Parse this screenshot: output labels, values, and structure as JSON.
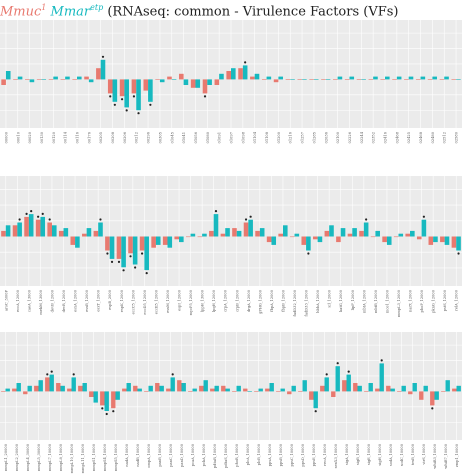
{
  "title": {
    "group1": "Mmuc",
    "group1_sup": "1",
    "group2": "Mmar",
    "group2_sup": "etp",
    "rest": " (RNAseq: common - Virulence Factors (VFs)"
  },
  "colors": {
    "group1": "#e8796f",
    "group2": "#17b9bf",
    "panel_bg": "#ebebeb",
    "grid": "#ffffff",
    "tick_text": "#555555",
    "star": "#222222"
  },
  "chart_data": [
    {
      "type": "bar",
      "panel": 1,
      "categories": [
        "00000",
        "00010",
        "00020",
        "00130",
        "00120",
        "00114",
        "00116",
        "00176",
        "00205",
        "00208",
        "00206",
        "00212",
        "00296",
        "00305",
        "01045",
        "01041",
        "01056",
        "01080",
        "01091",
        "01097",
        "01098",
        "01104",
        "01108",
        "01200",
        "01216",
        "01257",
        "01285",
        "02036",
        "02100",
        "02226",
        "02244",
        "02352",
        "02416",
        "02468",
        "02425",
        "02468",
        "02480",
        "02512",
        "02580"
      ],
      "series": [
        {
          "name": "Mmuc",
          "values": [
            -0.2,
            0.0,
            0.0,
            0.0,
            0.0,
            0.0,
            0.0,
            0.1,
            0.4,
            -0.5,
            -0.6,
            -0.5,
            -0.4,
            0.0,
            0.1,
            0.2,
            -0.3,
            -0.5,
            -0.2,
            0.3,
            0.4,
            0.1,
            0.0,
            -0.1,
            0.0,
            0.0,
            0.0,
            0.0,
            0.0,
            0.0,
            0.0,
            0.0,
            0.0,
            0.0,
            0.0,
            0.0,
            0.0,
            0.0,
            0.0
          ]
        },
        {
          "name": "Mmar",
          "values": [
            0.3,
            0.1,
            -0.1,
            0.0,
            0.1,
            0.1,
            0.1,
            -0.1,
            0.7,
            -0.8,
            -1.0,
            -1.1,
            -0.8,
            -0.1,
            0.0,
            -0.2,
            -0.3,
            -0.2,
            0.2,
            0.4,
            0.5,
            0.2,
            0.1,
            0.1,
            0.0,
            0.0,
            0.0,
            0.0,
            0.1,
            0.1,
            0.0,
            0.1,
            0.1,
            0.1,
            0.1,
            0.1,
            0.1,
            0.1,
            0.0
          ]
        }
      ]
    },
    {
      "type": "bar",
      "panel": 2,
      "categories": [
        "aroC_3/00F",
        "eccA_12000",
        "caeA_13000",
        "mekM_13000",
        "devB_12000",
        "devR_12000",
        "esxA_12000",
        "esxB_12000",
        "esxT_12000",
        "espB_2000",
        "espK_12000",
        "eccC5_12000",
        "eccD5_12000",
        "eccE5_12000",
        "esxM_12000",
        "espI_12000",
        "mycP5_12000",
        "lppH_13000",
        "lpqH_12000",
        "crpA_12000",
        "crpB_12000",
        "drgA_12000",
        "gPHG_12000",
        "fbpA_12000",
        "fbpB_12000",
        "fadD32_12000",
        "fadD33_12000",
        "hbhA_12000",
        "icl_12000",
        "katG_12000",
        "lipF_12000",
        "mbtA_12000",
        "mbtB_12000",
        "mce1_12000",
        "mmpL3_12000",
        "narX_12000",
        "phoP_12000",
        "pknG_12000",
        "pstS_12000",
        "relA_12000"
      ],
      "series": [
        {
          "name": "Mmuc",
          "values": [
            0.2,
            0.4,
            0.7,
            0.6,
            0.5,
            0.2,
            -0.3,
            0.1,
            0.2,
            -0.5,
            -0.8,
            -0.6,
            -0.5,
            -0.4,
            -0.3,
            -0.1,
            0.0,
            0.0,
            0.2,
            0.1,
            0.3,
            0.5,
            0.2,
            -0.2,
            0.1,
            0.0,
            -0.3,
            -0.1,
            0.2,
            -0.2,
            0.1,
            0.2,
            0.0,
            -0.2,
            0.0,
            0.1,
            -0.1,
            -0.3,
            -0.2,
            -0.4
          ]
        },
        {
          "name": "Mmar",
          "values": [
            0.4,
            0.5,
            0.8,
            0.7,
            0.4,
            0.3,
            -0.4,
            0.3,
            0.5,
            -0.8,
            -1.1,
            -1.0,
            -1.2,
            -0.3,
            -0.4,
            -0.2,
            0.1,
            0.1,
            0.8,
            0.3,
            0.2,
            0.6,
            0.3,
            -0.3,
            0.4,
            0.1,
            -0.5,
            -0.2,
            0.4,
            0.3,
            0.3,
            0.5,
            0.2,
            -0.3,
            0.1,
            0.2,
            0.6,
            -0.2,
            -0.3,
            -0.5
          ]
        }
      ]
    },
    {
      "type": "bar",
      "panel": 3,
      "categories": [
        "mmpL1_20000",
        "mmpL2_20000",
        "mmpL4_30000",
        "mmpL5_30000",
        "mmpL7_10000",
        "mmpL8_10000",
        "mmpL10_10000",
        "mmpL11_10000",
        "mmpS1_10000",
        "mmpS4_10000",
        "mmpS5_10000",
        "nadA_10000",
        "nadB_10000",
        "ompA_10000",
        "panB_10000",
        "panC_10000",
        "panD_10000",
        "pcaA_10000",
        "pckA_10000",
        "pdtaR_10000",
        "pdtaS_10000",
        "phoR_10000",
        "plcA_10000",
        "plcB_10000",
        "ppsA_10000",
        "ppsB_10000",
        "ppsC_10000",
        "ppsD_10000",
        "ppsE_10000",
        "recA_10000",
        "senX3_10000",
        "sigA_10000",
        "sigB_10000",
        "sigE_10000",
        "sigH_10000",
        "sodA_10000",
        "sodC_10000",
        "trxB_10000",
        "virS_10000",
        "whiB3_10000",
        "whiB7_10000",
        "zmp1_10000"
      ],
      "series": [
        {
          "name": "Mmuc",
          "values": [
            0.0,
            0.1,
            -0.1,
            0.2,
            0.5,
            0.3,
            0.1,
            0.2,
            -0.2,
            -0.5,
            -0.6,
            0.1,
            0.2,
            0.0,
            0.3,
            0.1,
            0.4,
            0.0,
            0.2,
            0.1,
            0.2,
            0.0,
            0.1,
            0.0,
            0.1,
            0.0,
            -0.1,
            0.0,
            -0.3,
            0.2,
            -0.2,
            0.4,
            0.3,
            0.0,
            0.1,
            0.2,
            0.0,
            -0.1,
            -0.3,
            -0.5,
            0.0,
            0.1
          ]
        },
        {
          "name": "Mmar",
          "values": [
            0.1,
            0.3,
            0.2,
            0.4,
            0.6,
            0.2,
            0.5,
            0.3,
            -0.4,
            -0.7,
            -0.3,
            0.3,
            0.1,
            0.2,
            0.2,
            0.5,
            0.3,
            0.1,
            0.4,
            0.2,
            0.1,
            0.2,
            0.0,
            0.1,
            0.3,
            0.1,
            0.2,
            0.4,
            -0.6,
            0.5,
            0.9,
            0.6,
            0.2,
            0.3,
            1.0,
            0.1,
            0.2,
            0.3,
            0.2,
            -0.3,
            0.4,
            0.2
          ]
        }
      ]
    }
  ]
}
